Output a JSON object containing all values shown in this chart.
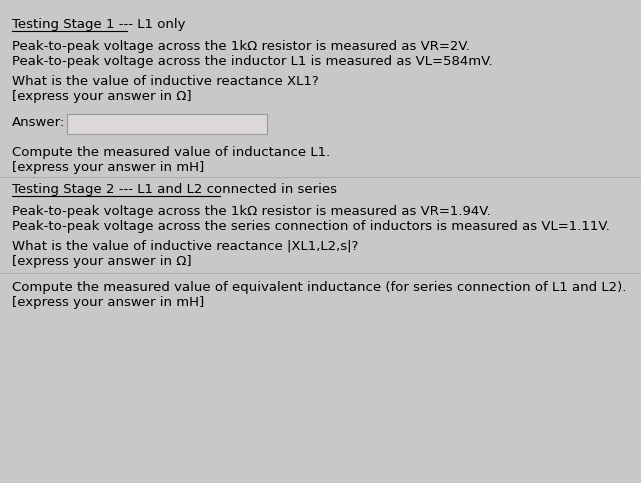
{
  "bg_color": "#c8c8c8",
  "answer_box_color": "#ddd8d8",
  "title1": "Testing Stage 1 --- L1 only",
  "title2": "Testing Stage 2 --- L1 and L2 connected in series",
  "line1": "Peak-to-peak voltage across the 1kΩ resistor is measured as VR=2V.",
  "line2": "Peak-to-peak voltage across the inductor L1 is measured as VL=584mV.",
  "line3": "What is the value of inductive reactance XL1?",
  "line4": "[express your answer in Ω]",
  "answer_label": "Answer:",
  "line5": "Compute the measured value of inductance L1.",
  "line6": "[express your answer in mH]",
  "line7": "Peak-to-peak voltage across the 1kΩ resistor is measured as VR=1.94V.",
  "line8": "Peak-to-peak voltage across the series connection of inductors is measured as VL=1.11V.",
  "line9": "What is the value of inductive reactance |XL1,L2,s|?",
  "line10": "[express your answer in Ω]",
  "line11": "Compute the measured value of equivalent inductance (for series connection of L1 and L2).",
  "line12": "[express your answer in mH]",
  "font_size": 9.5
}
